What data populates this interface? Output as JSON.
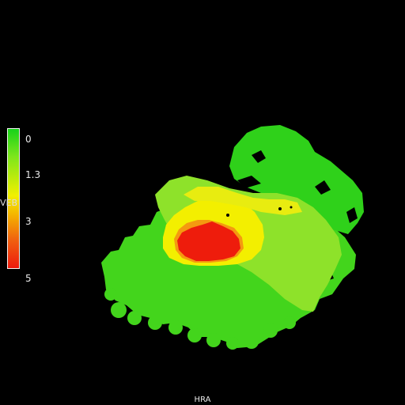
{
  "legend": {
    "title": "VEB",
    "ticks": [
      "0",
      "1.3",
      "3",
      "5"
    ]
  },
  "footer": {
    "label": "HRA"
  },
  "colors": {
    "background": "#000000",
    "low": "#2ecc1a",
    "mid": "#f2f000",
    "high": "#ee1a0e"
  }
}
